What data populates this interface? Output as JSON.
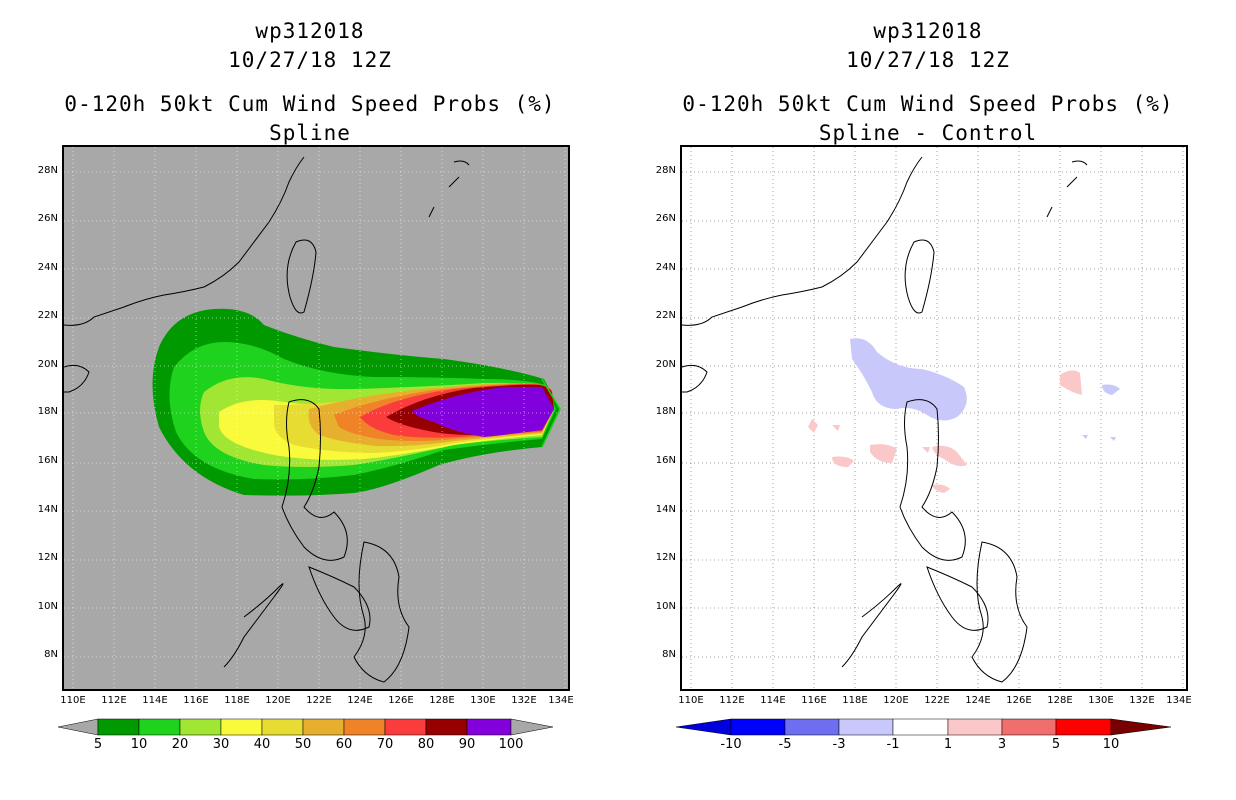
{
  "left": {
    "title_line1": "wp312018",
    "title_line2": "10/27/18 12Z",
    "title_line3": "0-120h 50kt Cum Wind Speed Probs (%)",
    "title_line4": "Spline",
    "lat_labels": [
      "28N",
      "26N",
      "24N",
      "22N",
      "20N",
      "18N",
      "16N",
      "14N",
      "12N",
      "10N",
      "8N"
    ],
    "lon_labels": [
      "110E",
      "112E",
      "114E",
      "116E",
      "118E",
      "120E",
      "122E",
      "124E",
      "126E",
      "128E",
      "130E",
      "132E",
      "134E"
    ],
    "background_color": "#a8a8a8",
    "colorbar": {
      "labels": [
        "5",
        "10",
        "20",
        "30",
        "40",
        "50",
        "60",
        "70",
        "80",
        "90",
        "100"
      ],
      "colors": [
        "#009a00",
        "#1ed21e",
        "#a0e632",
        "#fafa3c",
        "#e6dc32",
        "#e6af2d",
        "#f08228",
        "#fa3c3c",
        "#960000",
        "#8200dc"
      ]
    }
  },
  "right": {
    "title_line1": "wp312018",
    "title_line2": "10/27/18 12Z",
    "title_line3": "0-120h 50kt Cum Wind Speed Probs (%)",
    "title_line4": "Spline - Control",
    "lat_labels": [
      "28N",
      "26N",
      "24N",
      "22N",
      "20N",
      "18N",
      "16N",
      "14N",
      "12N",
      "10N",
      "8N"
    ],
    "lon_labels": [
      "110E",
      "112E",
      "114E",
      "116E",
      "118E",
      "120E",
      "122E",
      "124E",
      "126E",
      "128E",
      "130E",
      "132E",
      "134E"
    ],
    "colorbar": {
      "labels": [
        "-10",
        "-5",
        "-3",
        "-1",
        "1",
        "3",
        "5",
        "10"
      ],
      "colors": [
        "#0000dc",
        "#0000ff",
        "#6e6ef0",
        "#c8c8fa",
        "#ffffff",
        "#fac8c8",
        "#f06e6e",
        "#ff0000",
        "#780000"
      ]
    }
  }
}
